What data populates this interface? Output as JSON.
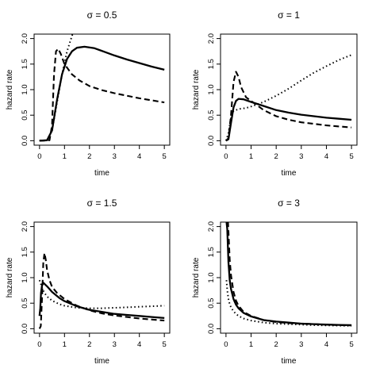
{
  "chart_data": [
    {
      "type": "line",
      "title": "σ = 0.5",
      "xlabel": "time",
      "ylabel": "hazard rate",
      "xlim": [
        0,
        5
      ],
      "ylim": [
        0,
        2
      ],
      "xticks": [
        "0",
        "1",
        "2",
        "3",
        "4",
        "5"
      ],
      "yticks": [
        "0.0",
        "0.5",
        "1.0",
        "1.5",
        "2.0"
      ],
      "series": [
        {
          "style": "solid",
          "x": [
            0,
            0.3,
            0.5,
            0.7,
            0.9,
            1.1,
            1.3,
            1.5,
            1.8,
            2.2,
            2.6,
            3.0,
            3.5,
            4.0,
            4.5,
            5.0
          ],
          "y": [
            0,
            0.01,
            0.2,
            0.8,
            1.3,
            1.6,
            1.75,
            1.82,
            1.84,
            1.81,
            1.74,
            1.67,
            1.59,
            1.52,
            1.45,
            1.39
          ]
        },
        {
          "style": "dashed",
          "x": [
            0,
            0.4,
            0.5,
            0.58,
            0.66,
            0.75,
            0.85,
            1.0,
            1.3,
            1.6,
            2.0,
            2.5,
            3.0,
            3.5,
            4.0,
            4.5,
            5.0
          ],
          "y": [
            0,
            0.01,
            0.3,
            1.3,
            1.75,
            1.8,
            1.7,
            1.5,
            1.3,
            1.18,
            1.07,
            0.99,
            0.93,
            0.88,
            0.83,
            0.79,
            0.75
          ]
        },
        {
          "style": "dotted",
          "x": [
            0,
            0.3,
            0.5,
            0.7,
            0.9,
            1.1,
            1.3,
            1.4
          ],
          "y": [
            0,
            0.01,
            0.2,
            0.75,
            1.3,
            1.75,
            2.05,
            2.2
          ]
        }
      ]
    },
    {
      "type": "line",
      "title": "σ = 1",
      "xlabel": "time",
      "ylabel": "hazard rate",
      "xlim": [
        0,
        5
      ],
      "ylim": [
        0,
        2
      ],
      "xticks": [
        "0",
        "1",
        "2",
        "3",
        "4",
        "5"
      ],
      "yticks": [
        "0.0",
        "0.5",
        "1.0",
        "1.5",
        "2.0"
      ],
      "series": [
        {
          "style": "solid",
          "x": [
            0,
            0.1,
            0.2,
            0.3,
            0.4,
            0.5,
            0.7,
            1.0,
            1.5,
            2.0,
            2.5,
            3.0,
            3.5,
            4.0,
            4.5,
            5.0
          ],
          "y": [
            0,
            0.03,
            0.35,
            0.65,
            0.78,
            0.82,
            0.81,
            0.76,
            0.68,
            0.6,
            0.55,
            0.51,
            0.48,
            0.45,
            0.43,
            0.41
          ]
        },
        {
          "style": "dashed",
          "x": [
            0,
            0.1,
            0.2,
            0.3,
            0.4,
            0.5,
            0.6,
            0.8,
            1.0,
            1.5,
            2.0,
            2.5,
            3.0,
            3.5,
            4.0,
            4.5,
            5.0
          ],
          "y": [
            0,
            0.05,
            0.5,
            1.15,
            1.35,
            1.25,
            1.05,
            0.85,
            0.78,
            0.6,
            0.48,
            0.41,
            0.36,
            0.33,
            0.3,
            0.28,
            0.26
          ]
        },
        {
          "style": "dotted",
          "x": [
            0,
            0.1,
            0.2,
            0.3,
            0.5,
            0.8,
            1.0,
            1.5,
            2.0,
            2.5,
            3.0,
            3.5,
            4.0,
            4.5,
            5.0
          ],
          "y": [
            0,
            0.15,
            0.45,
            0.58,
            0.62,
            0.64,
            0.67,
            0.76,
            0.88,
            1.02,
            1.18,
            1.33,
            1.46,
            1.58,
            1.68
          ]
        }
      ]
    },
    {
      "type": "line",
      "title": "σ = 1.5",
      "xlabel": "time",
      "ylabel": "hazard rate",
      "xlim": [
        0,
        5
      ],
      "ylim": [
        0,
        2
      ],
      "xticks": [
        "0",
        "1",
        "2",
        "3",
        "4",
        "5"
      ],
      "yticks": [
        "0.0",
        "0.5",
        "1.0",
        "1.5",
        "2.0"
      ],
      "series": [
        {
          "style": "solid",
          "x": [
            0,
            0.03,
            0.06,
            0.1,
            0.15,
            0.3,
            0.5,
            0.8,
            1.0,
            1.5,
            2.0,
            2.5,
            3.0,
            3.5,
            4.0,
            4.5,
            5.0
          ],
          "y": [
            0.25,
            0.4,
            0.7,
            0.85,
            0.9,
            0.83,
            0.72,
            0.6,
            0.54,
            0.44,
            0.37,
            0.33,
            0.29,
            0.27,
            0.25,
            0.23,
            0.21
          ]
        },
        {
          "style": "dashed",
          "x": [
            0,
            0.05,
            0.1,
            0.15,
            0.2,
            0.25,
            0.3,
            0.4,
            0.5,
            0.7,
            1.0,
            1.5,
            2.0,
            2.5,
            3.0,
            3.5,
            4.0,
            4.5,
            5.0
          ],
          "y": [
            0,
            0.05,
            0.6,
            1.3,
            1.48,
            1.35,
            1.15,
            0.95,
            0.82,
            0.7,
            0.58,
            0.45,
            0.36,
            0.3,
            0.26,
            0.23,
            0.2,
            0.18,
            0.16
          ]
        },
        {
          "style": "dotted",
          "x": [
            0,
            0.05,
            0.1,
            0.2,
            0.3,
            0.5,
            0.8,
            1.0,
            1.5,
            2.0,
            2.5,
            3.0,
            3.5,
            4.0,
            4.5,
            5.0
          ],
          "y": [
            0.95,
            0.88,
            0.8,
            0.7,
            0.63,
            0.55,
            0.48,
            0.45,
            0.41,
            0.4,
            0.4,
            0.41,
            0.42,
            0.43,
            0.44,
            0.45
          ]
        }
      ]
    },
    {
      "type": "line",
      "title": "σ = 3",
      "xlabel": "time",
      "ylabel": "hazard rate",
      "xlim": [
        0,
        5
      ],
      "ylim": [
        0,
        2
      ],
      "xticks": [
        "0",
        "1",
        "2",
        "3",
        "4",
        "5"
      ],
      "yticks": [
        "0.0",
        "0.5",
        "1.0",
        "1.5",
        "2.0"
      ],
      "series": [
        {
          "style": "solid",
          "x": [
            0.02,
            0.05,
            0.1,
            0.15,
            0.2,
            0.3,
            0.4,
            0.5,
            0.7,
            1.0,
            1.5,
            2.0,
            2.5,
            3.0,
            3.5,
            4.0,
            4.5,
            5.0
          ],
          "y": [
            2.1,
            1.95,
            1.3,
            0.95,
            0.78,
            0.58,
            0.47,
            0.4,
            0.31,
            0.24,
            0.17,
            0.14,
            0.12,
            0.1,
            0.09,
            0.08,
            0.075,
            0.07
          ]
        },
        {
          "style": "dashed",
          "x": [
            0.08,
            0.1,
            0.15,
            0.2,
            0.3,
            0.4,
            0.5,
            0.7,
            1.0,
            1.5,
            2.0,
            2.5,
            3.0,
            3.5,
            4.0,
            4.5,
            5.0
          ],
          "y": [
            2.1,
            1.9,
            1.35,
            1.05,
            0.72,
            0.55,
            0.45,
            0.33,
            0.25,
            0.17,
            0.13,
            0.11,
            0.1,
            0.09,
            0.08,
            0.07,
            0.065
          ]
        },
        {
          "style": "dotted",
          "x": [
            0.02,
            0.05,
            0.1,
            0.15,
            0.2,
            0.3,
            0.4,
            0.5,
            0.7,
            1.0,
            1.5,
            2.0,
            2.5,
            3.0,
            3.5,
            4.0,
            4.5,
            5.0
          ],
          "y": [
            0.95,
            0.75,
            0.58,
            0.48,
            0.42,
            0.34,
            0.29,
            0.25,
            0.2,
            0.16,
            0.12,
            0.1,
            0.09,
            0.08,
            0.07,
            0.065,
            0.06,
            0.055
          ]
        }
      ]
    }
  ]
}
